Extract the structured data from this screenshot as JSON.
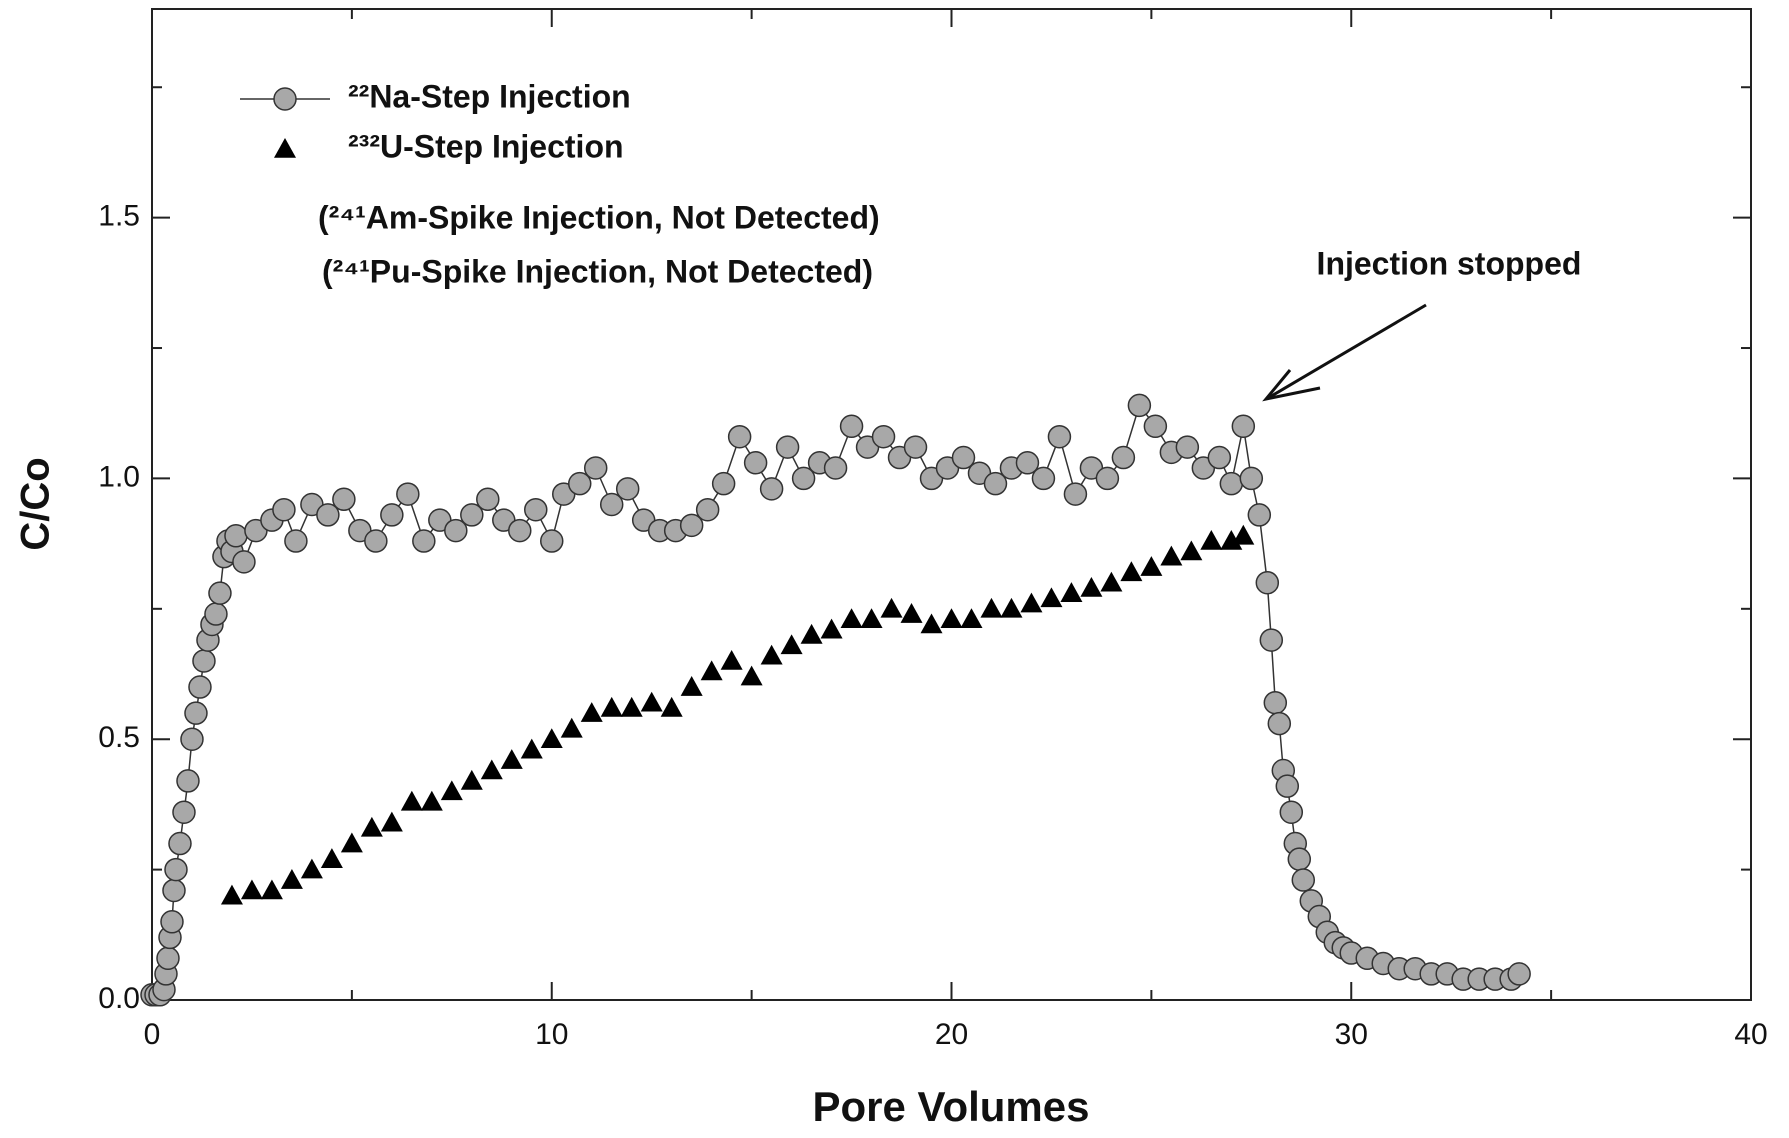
{
  "chart_data": {
    "type": "scatter",
    "xlabel": "Pore Volumes",
    "ylabel": "C/Co",
    "xlim": [
      0,
      40
    ],
    "ylim": [
      0,
      1.9
    ],
    "xticks": [
      0,
      10,
      20,
      30,
      40
    ],
    "yticks": [
      {
        "value": 0,
        "label": "0.0"
      },
      0.5,
      {
        "value": 1,
        "label": "1.0"
      },
      1.5
    ],
    "xminorticks": [
      5,
      15,
      25,
      35
    ],
    "yminorticks": [
      0.25,
      0.75,
      1.25,
      1.75
    ],
    "legend": "upper left",
    "annotations": [
      "(²⁴¹Am-Spike Injection, Not Detected)",
      "(²⁴¹Pu-Spike Injection, Not Detected)",
      "Injection stopped"
    ],
    "series": [
      {
        "name": "²²Na-Step Injection",
        "color": "#a8a8a8",
        "marker": "circle",
        "line": true,
        "x": [
          0,
          0.1,
          0.2,
          0.3,
          0.35,
          0.4,
          0.45,
          0.5,
          0.55,
          0.6,
          0.7,
          0.8,
          0.9,
          1.0,
          1.1,
          1.2,
          1.3,
          1.4,
          1.5,
          1.6,
          1.7,
          1.8,
          1.9,
          2.0,
          2.1,
          2.3,
          2.6,
          3.0,
          3.3,
          3.6,
          4.0,
          4.4,
          4.8,
          5.2,
          5.6,
          6.0,
          6.4,
          6.8,
          7.2,
          7.6,
          8.0,
          8.4,
          8.8,
          9.2,
          9.6,
          10.0,
          10.3,
          10.7,
          11.1,
          11.5,
          11.9,
          12.3,
          12.7,
          13.1,
          13.5,
          13.9,
          14.3,
          14.7,
          15.1,
          15.5,
          15.9,
          16.3,
          16.7,
          17.1,
          17.5,
          17.9,
          18.3,
          18.7,
          19.1,
          19.5,
          19.9,
          20.3,
          20.7,
          21.1,
          21.5,
          21.9,
          22.3,
          22.7,
          23.1,
          23.5,
          23.9,
          24.3,
          24.7,
          25.1,
          25.5,
          25.9,
          26.3,
          26.7,
          27.0,
          27.3,
          27.5,
          27.7,
          27.9,
          28.0,
          28.1,
          28.2,
          28.3,
          28.4,
          28.5,
          28.6,
          28.7,
          28.8,
          29.0,
          29.2,
          29.4,
          29.6,
          29.8,
          30.0,
          30.4,
          30.8,
          31.2,
          31.6,
          32.0,
          32.4,
          32.8,
          33.2,
          33.6,
          34.0,
          34.2
        ],
        "values": [
          0.01,
          0.01,
          0.01,
          0.02,
          0.05,
          0.08,
          0.12,
          0.15,
          0.21,
          0.25,
          0.3,
          0.36,
          0.42,
          0.5,
          0.55,
          0.6,
          0.65,
          0.69,
          0.72,
          0.74,
          0.78,
          0.85,
          0.88,
          0.86,
          0.89,
          0.84,
          0.9,
          0.92,
          0.94,
          0.88,
          0.95,
          0.93,
          0.96,
          0.9,
          0.88,
          0.93,
          0.97,
          0.88,
          0.92,
          0.9,
          0.93,
          0.96,
          0.92,
          0.9,
          0.94,
          0.88,
          0.97,
          0.99,
          1.02,
          0.95,
          0.98,
          0.92,
          0.9,
          0.9,
          0.91,
          0.94,
          0.99,
          1.08,
          1.03,
          0.98,
          1.06,
          1.0,
          1.03,
          1.02,
          1.1,
          1.06,
          1.08,
          1.04,
          1.06,
          1.0,
          1.02,
          1.04,
          1.01,
          0.99,
          1.02,
          1.03,
          1.0,
          1.08,
          0.97,
          1.02,
          1.0,
          1.04,
          1.14,
          1.1,
          1.05,
          1.06,
          1.02,
          1.04,
          0.99,
          1.1,
          1.0,
          0.93,
          0.8,
          0.69,
          0.57,
          0.53,
          0.44,
          0.41,
          0.36,
          0.3,
          0.27,
          0.23,
          0.19,
          0.16,
          0.13,
          0.11,
          0.1,
          0.09,
          0.08,
          0.07,
          0.06,
          0.06,
          0.05,
          0.05,
          0.04,
          0.04,
          0.04,
          0.04,
          0.05
        ]
      },
      {
        "name": "²³²U-Step Injection",
        "color": "#000000",
        "marker": "triangle",
        "line": false,
        "x": [
          2,
          2.5,
          3,
          3.5,
          4,
          4.5,
          5,
          5.5,
          6,
          6.5,
          7,
          7.5,
          8,
          8.5,
          9,
          9.5,
          10,
          10.5,
          11,
          11.5,
          12,
          12.5,
          13,
          13.5,
          14,
          14.5,
          15,
          15.5,
          16,
          16.5,
          17,
          17.5,
          18,
          18.5,
          19,
          19.5,
          20,
          20.5,
          21,
          21.5,
          22,
          22.5,
          23,
          23.5,
          24,
          24.5,
          25,
          25.5,
          26,
          26.5,
          27,
          27.3
        ],
        "values": [
          0.2,
          0.21,
          0.21,
          0.23,
          0.25,
          0.27,
          0.3,
          0.33,
          0.34,
          0.38,
          0.38,
          0.4,
          0.42,
          0.44,
          0.46,
          0.48,
          0.5,
          0.52,
          0.55,
          0.56,
          0.56,
          0.57,
          0.56,
          0.6,
          0.63,
          0.65,
          0.62,
          0.66,
          0.68,
          0.7,
          0.71,
          0.73,
          0.73,
          0.75,
          0.74,
          0.72,
          0.73,
          0.73,
          0.75,
          0.75,
          0.76,
          0.77,
          0.78,
          0.79,
          0.8,
          0.82,
          0.83,
          0.85,
          0.86,
          0.88,
          0.88,
          0.89
        ]
      }
    ]
  }
}
